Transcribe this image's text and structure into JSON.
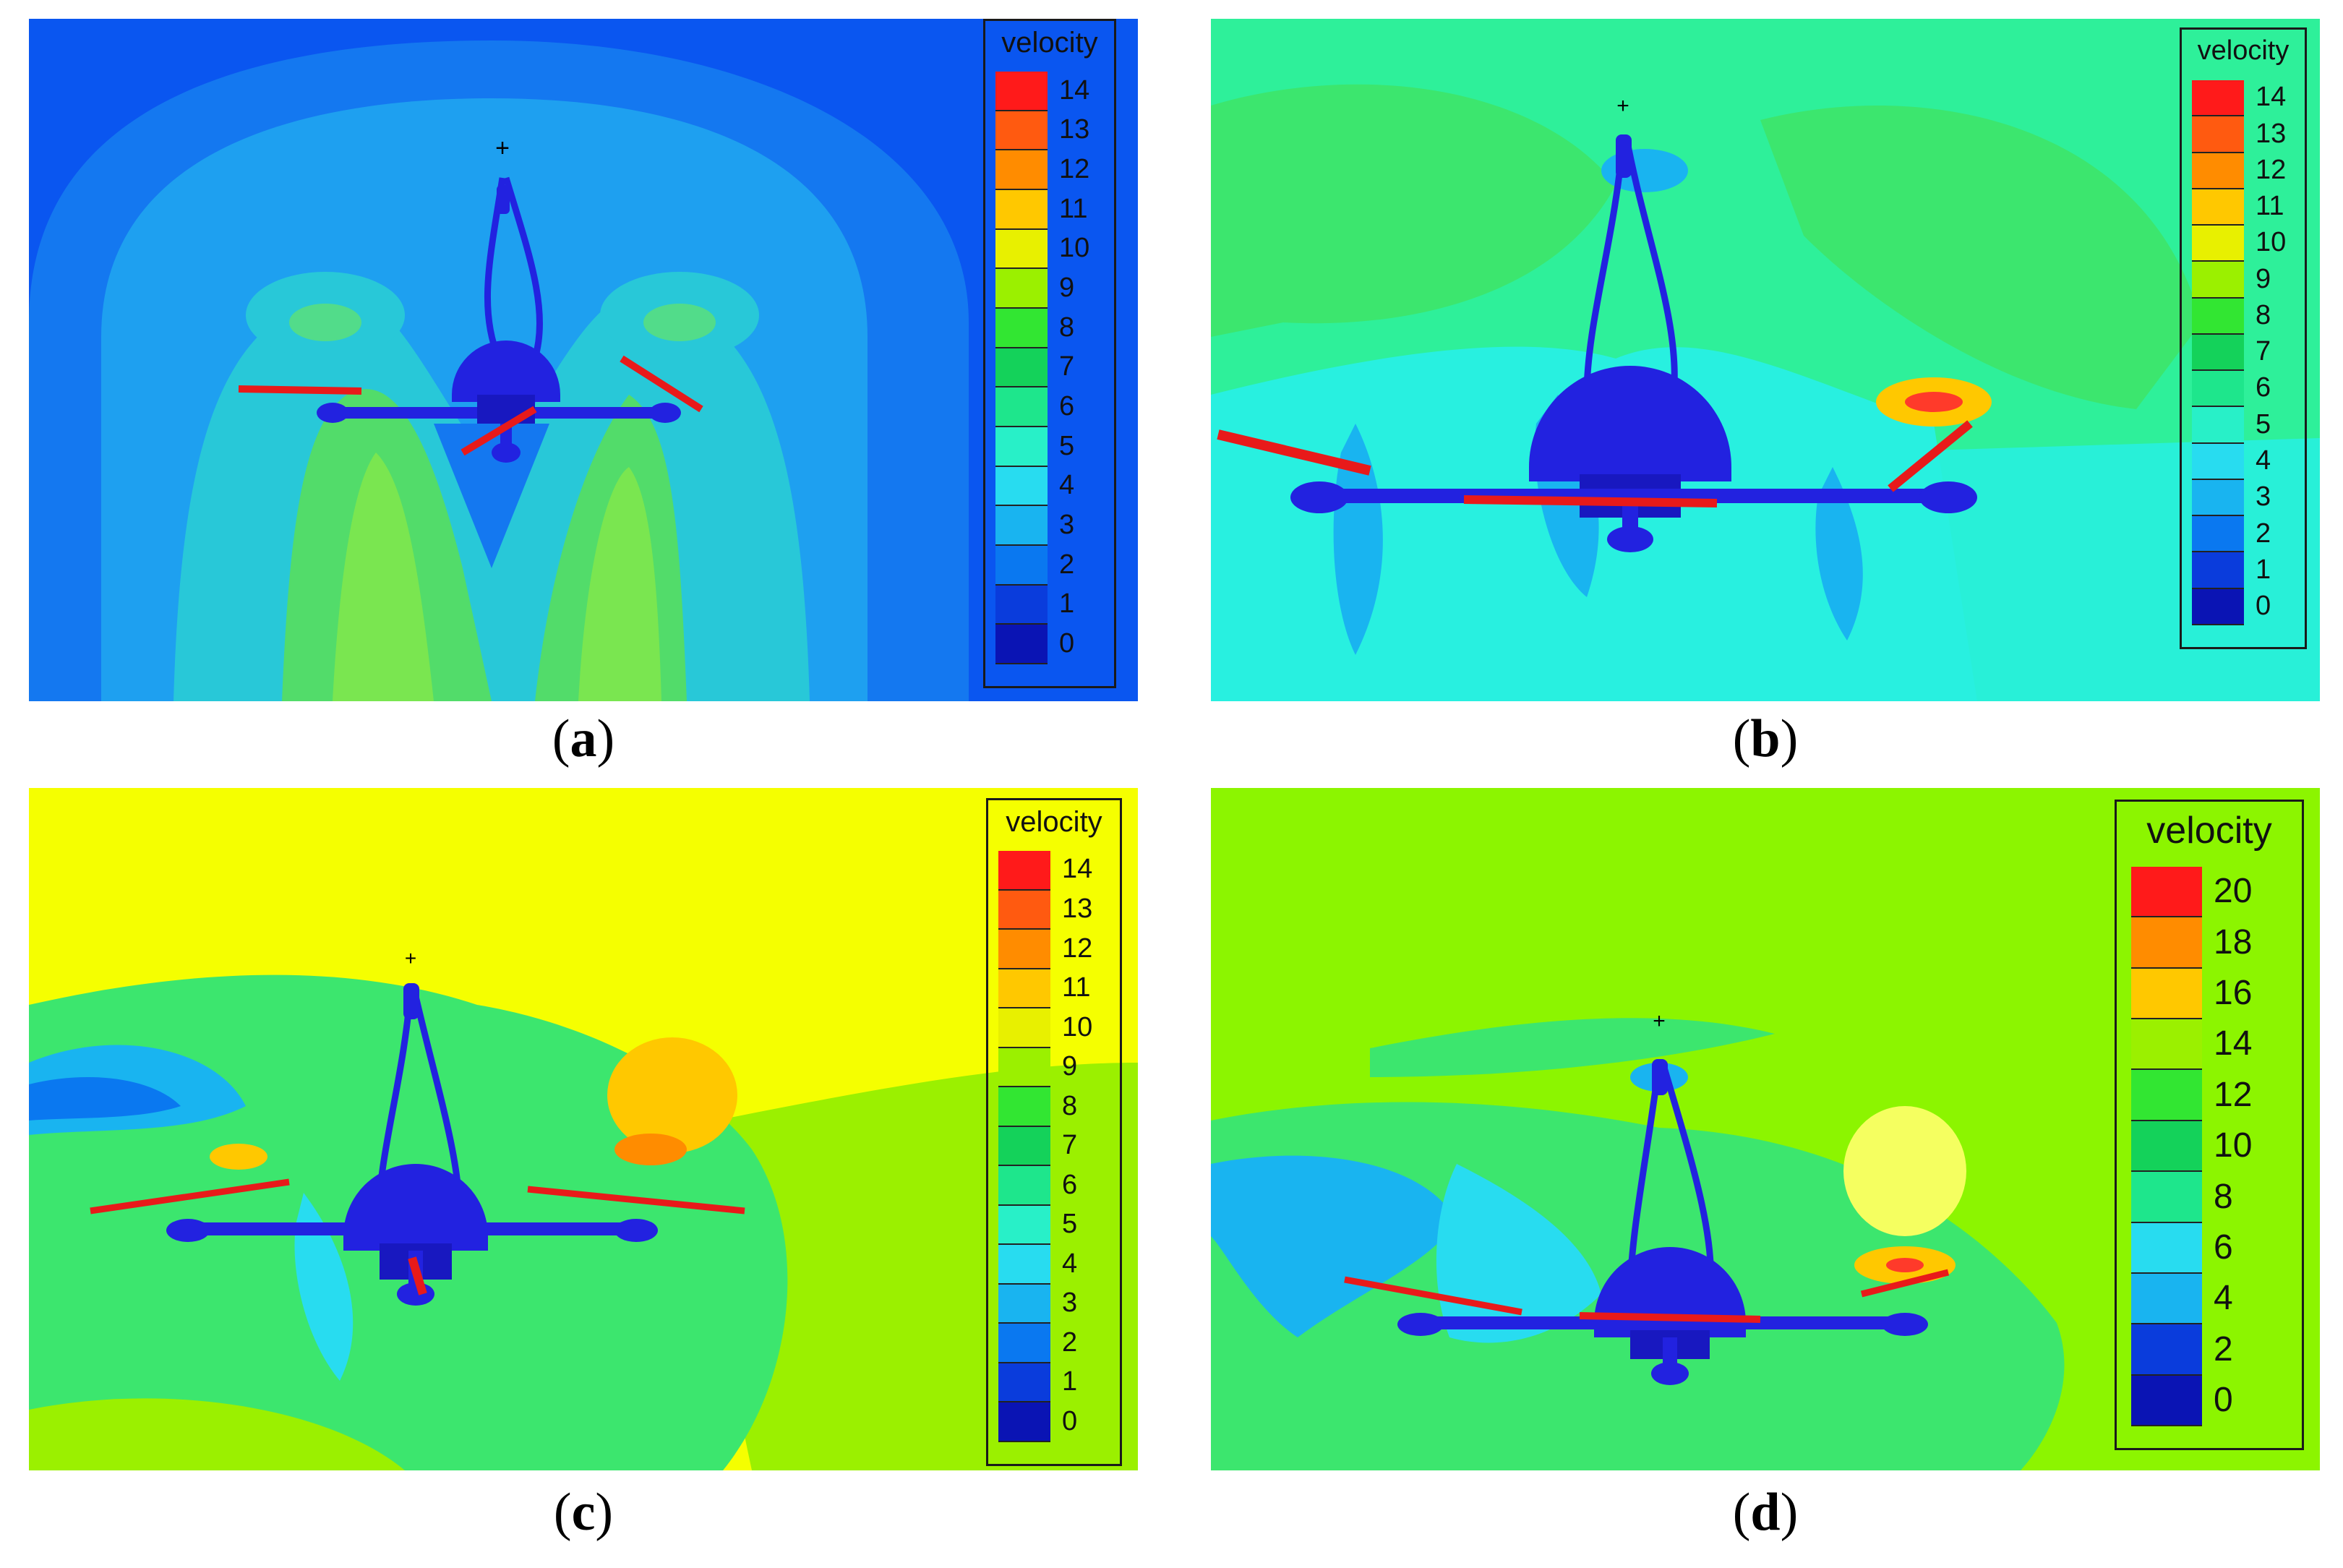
{
  "panels": [
    {
      "id": "a",
      "caption": "(a)",
      "caption_letter": "a",
      "background": "#0a56f0",
      "legend": {
        "title": "velocity",
        "ticks": [
          "14",
          "13",
          "12",
          "11",
          "10",
          "9",
          "8",
          "7",
          "6",
          "5",
          "4",
          "3",
          "2",
          "1",
          "0"
        ]
      }
    },
    {
      "id": "b",
      "caption": "(b)",
      "caption_letter": "b",
      "background": "#2ef09a",
      "legend": {
        "title": "velocity",
        "ticks": [
          "14",
          "13",
          "12",
          "11",
          "10",
          "9",
          "8",
          "7",
          "6",
          "5",
          "4",
          "3",
          "2",
          "1",
          "0"
        ]
      }
    },
    {
      "id": "c",
      "caption": "(c)",
      "caption_letter": "c",
      "background": "#f5ff00",
      "legend": {
        "title": "velocity",
        "ticks": [
          "14",
          "13",
          "12",
          "11",
          "10",
          "9",
          "8",
          "7",
          "6",
          "5",
          "4",
          "3",
          "2",
          "1",
          "0"
        ]
      }
    },
    {
      "id": "d",
      "caption": "(d)",
      "caption_letter": "d",
      "background": "#8cf500",
      "legend": {
        "title": "velocity",
        "ticks": [
          "20",
          "18",
          "16",
          "14",
          "12",
          "10",
          "8",
          "6",
          "4",
          "2",
          "0"
        ]
      }
    }
  ],
  "colormap": [
    "#ff1a1a",
    "#ff5a10",
    "#ff8c00",
    "#ffc800",
    "#e8f000",
    "#9bf000",
    "#32e632",
    "#10d23c",
    "#14d25a",
    "#1ee68c",
    "#28f0c8",
    "#28dcf0",
    "#19b4f0",
    "#0a78f0",
    "#0a3cdc",
    "#0a14b4"
  ],
  "colors": {
    "drone": "#2222e0",
    "blade": "#e81a1a"
  }
}
